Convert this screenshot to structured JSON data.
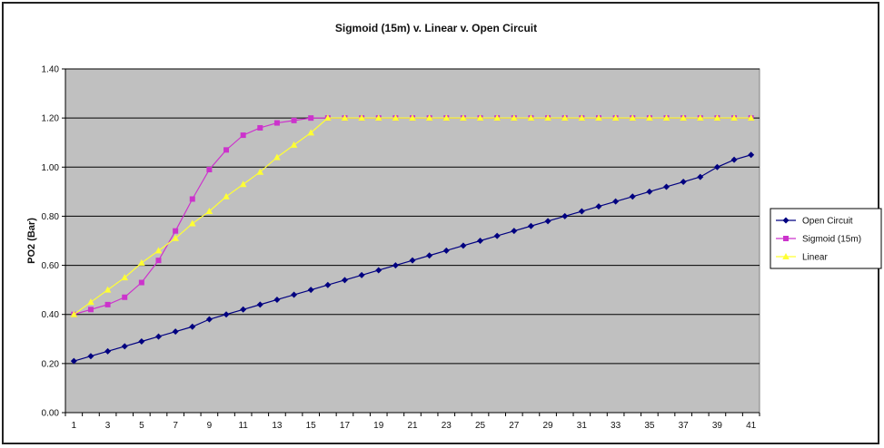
{
  "chart_data": {
    "type": "line",
    "title": "Sigmoid (15m) v. Linear v. Open Circuit",
    "xlabel": "",
    "ylabel": "PO2 (Bar)",
    "ylim": [
      0,
      1.4
    ],
    "yticks": [
      "0.00",
      "0.20",
      "0.40",
      "0.60",
      "0.80",
      "1.00",
      "1.20",
      "1.40"
    ],
    "xticks": [
      "1",
      "3",
      "5",
      "7",
      "9",
      "11",
      "13",
      "15",
      "17",
      "19",
      "21",
      "23",
      "25",
      "27",
      "29",
      "31",
      "33",
      "35",
      "37",
      "39",
      "41"
    ],
    "x": [
      1,
      2,
      3,
      4,
      5,
      6,
      7,
      8,
      9,
      10,
      11,
      12,
      13,
      14,
      15,
      16,
      17,
      18,
      19,
      20,
      21,
      22,
      23,
      24,
      25,
      26,
      27,
      28,
      29,
      30,
      31,
      32,
      33,
      34,
      35,
      36,
      37,
      38,
      39,
      40,
      41
    ],
    "grid": true,
    "legend_position": "right",
    "colors": {
      "plot_bg": "#c0c0c0",
      "open_circuit": "#000080",
      "sigmoid": "#cc33cc",
      "linear": "#ffff33"
    },
    "series": [
      {
        "name": "Open Circuit",
        "values": [
          0.21,
          0.23,
          0.25,
          0.27,
          0.29,
          0.31,
          0.33,
          0.35,
          0.38,
          0.4,
          0.42,
          0.44,
          0.46,
          0.48,
          0.5,
          0.52,
          0.54,
          0.56,
          0.58,
          0.6,
          0.62,
          0.64,
          0.66,
          0.68,
          0.7,
          0.72,
          0.74,
          0.76,
          0.78,
          0.8,
          0.82,
          0.84,
          0.86,
          0.88,
          0.9,
          0.92,
          0.94,
          0.96,
          1.0,
          1.03,
          1.05
        ]
      },
      {
        "name": "Sigmoid (15m)",
        "values": [
          0.4,
          0.42,
          0.44,
          0.47,
          0.53,
          0.62,
          0.74,
          0.87,
          0.99,
          1.07,
          1.13,
          1.16,
          1.18,
          1.19,
          1.2,
          1.2,
          1.2,
          1.2,
          1.2,
          1.2,
          1.2,
          1.2,
          1.2,
          1.2,
          1.2,
          1.2,
          1.2,
          1.2,
          1.2,
          1.2,
          1.2,
          1.2,
          1.2,
          1.2,
          1.2,
          1.2,
          1.2,
          1.2,
          1.2,
          1.2,
          1.2
        ]
      },
      {
        "name": "Linear",
        "values": [
          0.4,
          0.45,
          0.5,
          0.55,
          0.61,
          0.66,
          0.71,
          0.77,
          0.82,
          0.88,
          0.93,
          0.98,
          1.04,
          1.09,
          1.14,
          1.2,
          1.2,
          1.2,
          1.2,
          1.2,
          1.2,
          1.2,
          1.2,
          1.2,
          1.2,
          1.2,
          1.2,
          1.2,
          1.2,
          1.2,
          1.2,
          1.2,
          1.2,
          1.2,
          1.2,
          1.2,
          1.2,
          1.2,
          1.2,
          1.2,
          1.2
        ]
      }
    ]
  }
}
